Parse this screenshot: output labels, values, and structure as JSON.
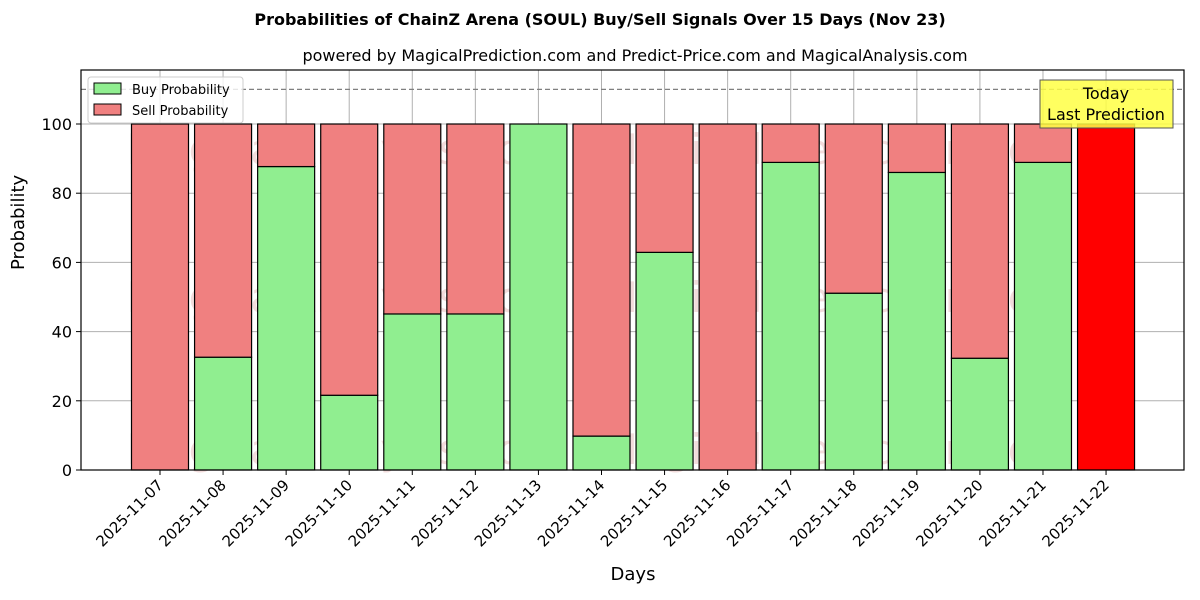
{
  "chart_data": {
    "type": "bar",
    "stacked": true,
    "title": "Probabilities of ChainZ Arena (SOUL) Buy/Sell Signals Over 15 Days (Nov 23)",
    "subtitle": "powered by MagicalPrediction.com and Predict-Price.com and MagicalAnalysis.com",
    "xlabel": "Days",
    "ylabel": "Probability",
    "ylim": [
      0,
      115
    ],
    "yticks": [
      0,
      20,
      40,
      60,
      80,
      100
    ],
    "grid": true,
    "reference_line": {
      "y": 110,
      "style": "dashed"
    },
    "legend": {
      "position": "upper left",
      "entries": [
        "Buy Probability",
        "Sell Probability"
      ]
    },
    "categories": [
      "2025-11-07",
      "2025-11-08",
      "2025-11-09",
      "2025-11-10",
      "2025-11-11",
      "2025-11-12",
      "2025-11-13",
      "2025-11-14",
      "2025-11-15",
      "2025-11-16",
      "2025-11-17",
      "2025-11-18",
      "2025-11-19",
      "2025-11-20",
      "2025-11-21",
      "2025-11-22"
    ],
    "series": [
      {
        "name": "Buy Probability",
        "color": "#90ee90",
        "values": [
          0,
          32.6,
          87.7,
          21.6,
          45.1,
          45.1,
          100,
          9.8,
          62.9,
          0,
          88.9,
          51.1,
          86.0,
          32.3,
          88.9,
          0
        ]
      },
      {
        "name": "Sell Probability",
        "color": "#f08080",
        "values": [
          100,
          67.4,
          12.3,
          78.4,
          54.9,
          54.9,
          0,
          90.2,
          37.1,
          100,
          11.1,
          48.9,
          14.0,
          67.7,
          11.1,
          100
        ]
      }
    ],
    "highlight": {
      "category": "2025-11-22",
      "color": "#ff0000",
      "annotation": "Today\nLast Prediction"
    },
    "watermarks": [
      "MagicalAnalysis.com",
      "MagicalPrediction.com"
    ]
  },
  "labels": {
    "title": "Probabilities of ChainZ Arena (SOUL) Buy/Sell Signals Over 15 Days (Nov 23)",
    "subtitle": "powered by MagicalPrediction.com and Predict-Price.com and MagicalAnalysis.com",
    "xlabel": "Days",
    "ylabel": "Probability",
    "legend_buy": "Buy Probability",
    "legend_sell": "Sell Probability",
    "annotation_line1": "Today",
    "annotation_line2": "Last Prediction"
  }
}
